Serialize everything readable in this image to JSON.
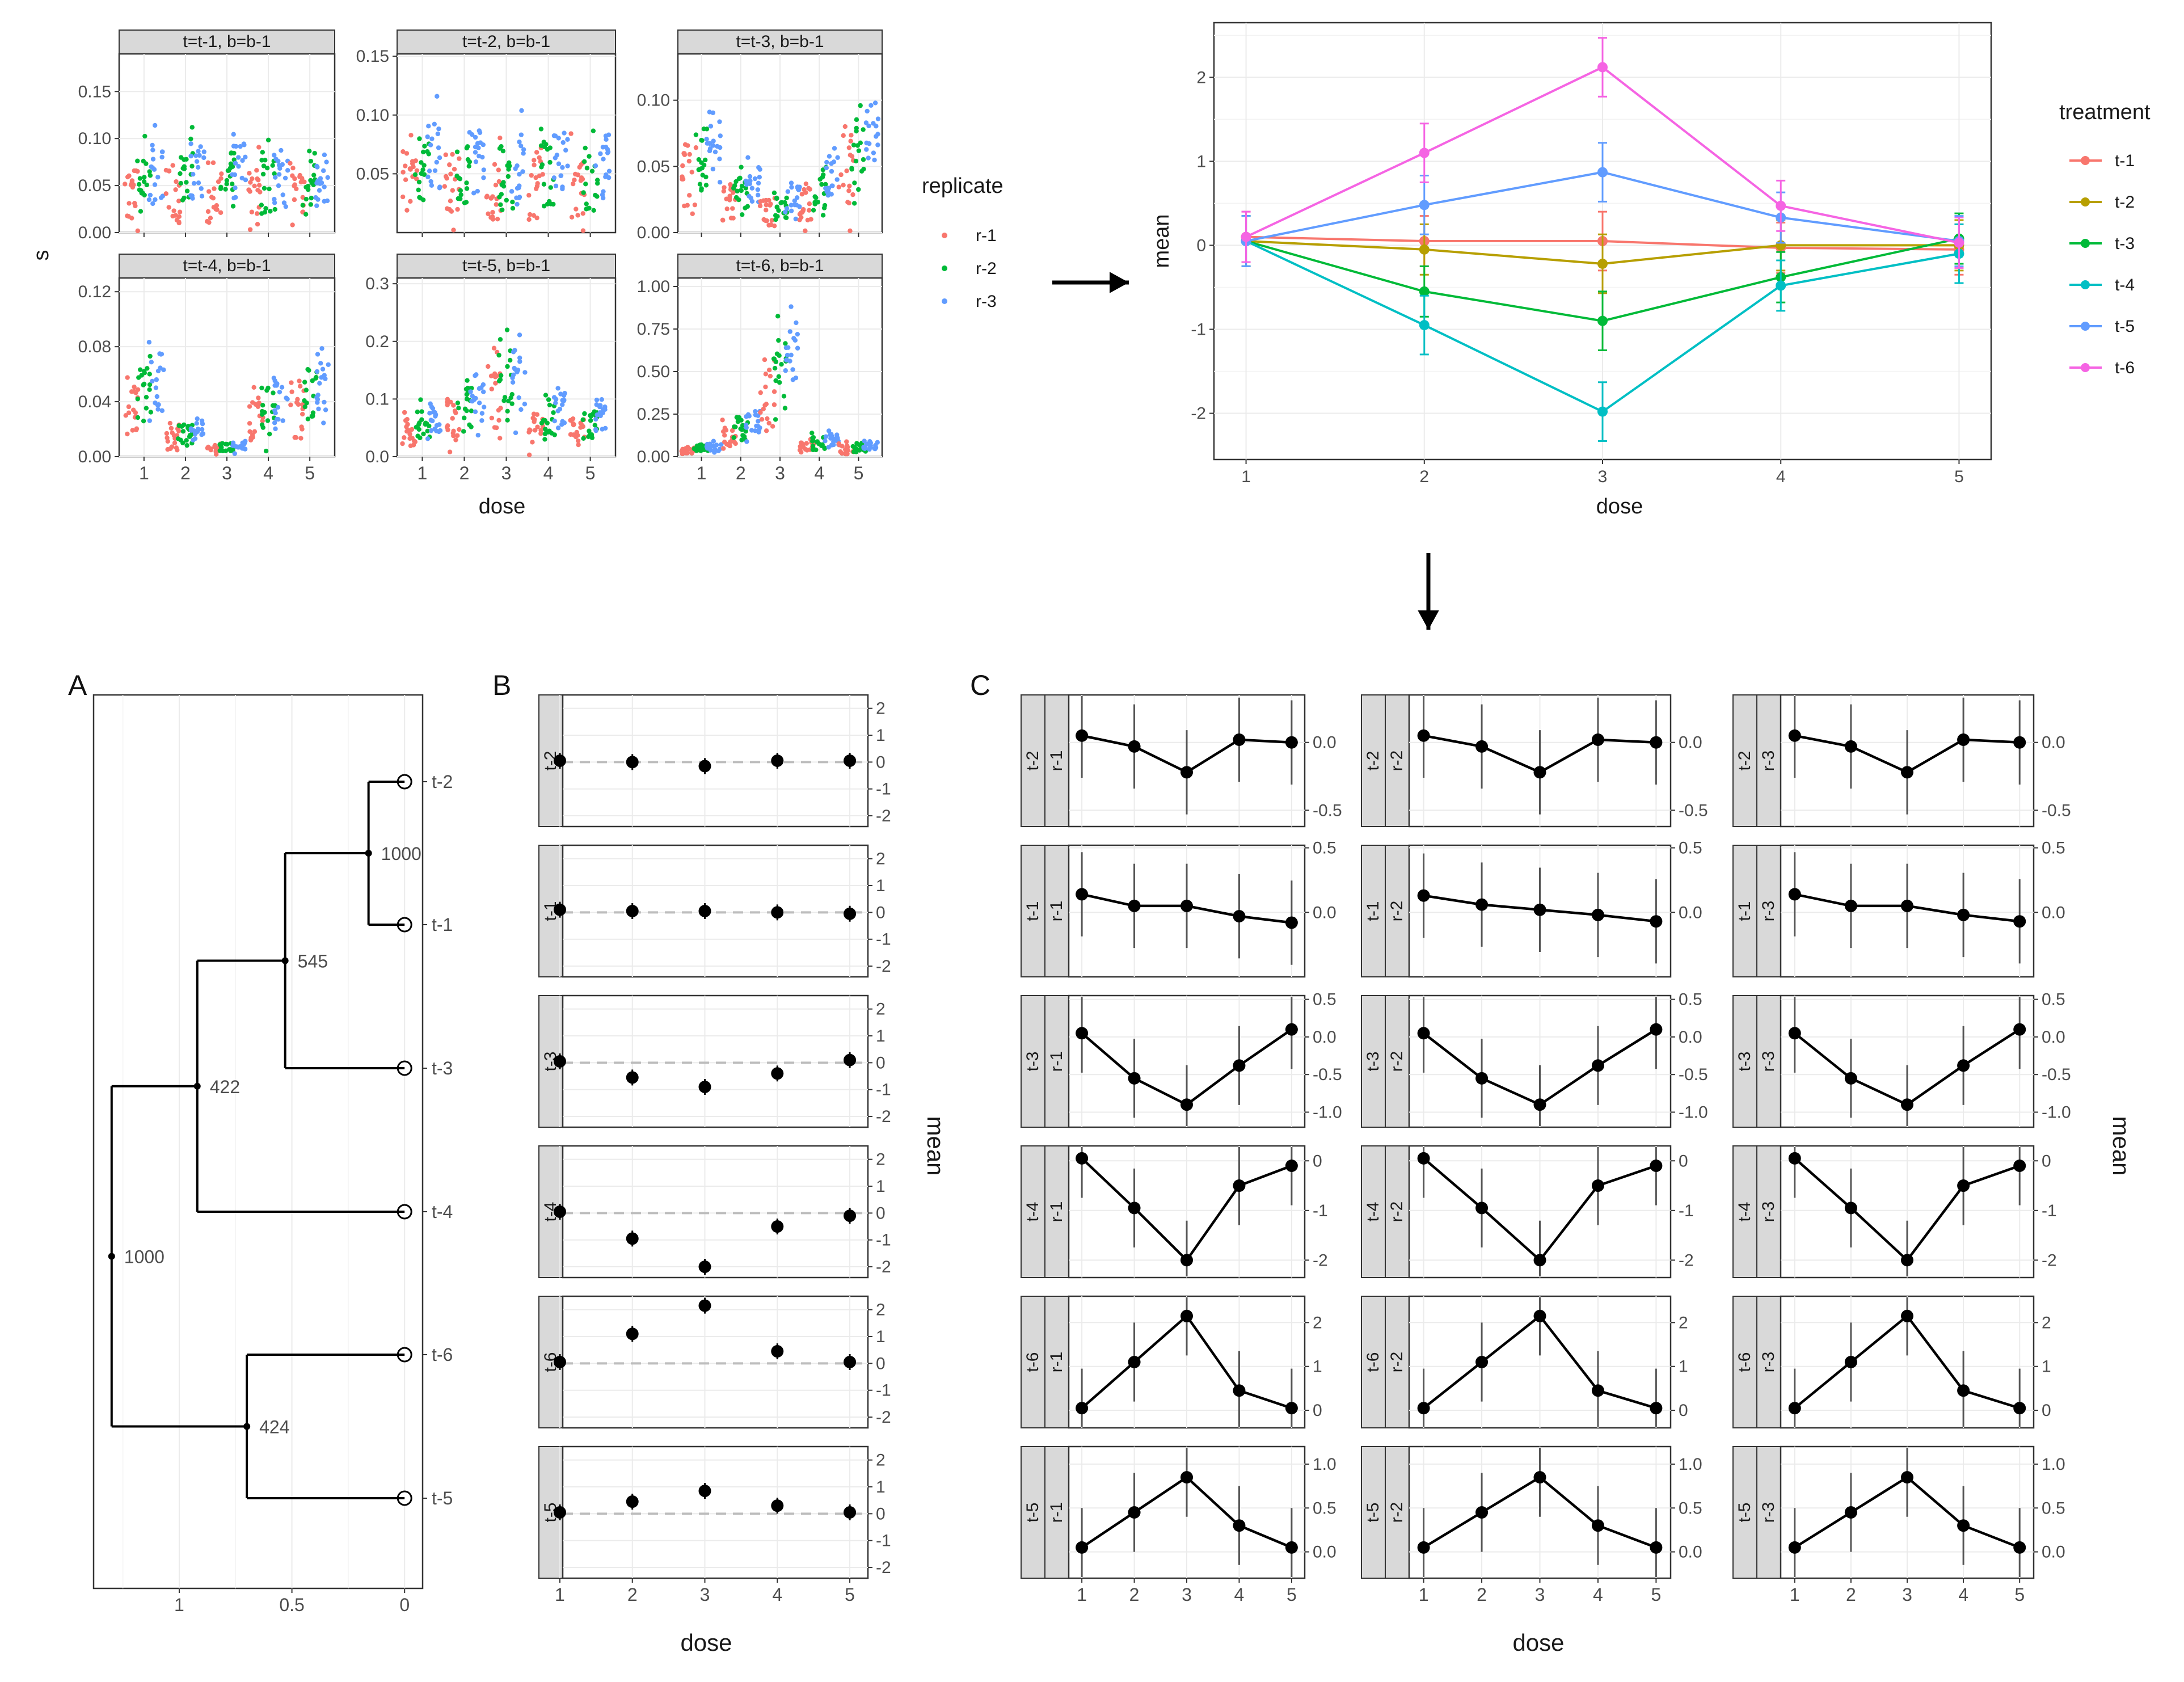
{
  "colors": {
    "r-1": "#F8766D",
    "r-2": "#00BA38",
    "r-3": "#619CFF",
    "t-1": "#F8766D",
    "t-2": "#B79F00",
    "t-3": "#00BA38",
    "t-4": "#00BFC4",
    "t-5": "#619CFF",
    "t-6": "#F564E3"
  },
  "panel_letters": {
    "a": "A",
    "b": "B",
    "c": "C"
  },
  "chart_data": [
    {
      "id": "raw_scatter",
      "type": "scatter",
      "xlabel": "dose",
      "ylabel": "s",
      "legend": {
        "title": "replicate",
        "entries": [
          "r-1",
          "r-2",
          "r-3"
        ],
        "placement": "right"
      },
      "x_ticks": [
        "1",
        "2",
        "3",
        "4",
        "5"
      ],
      "facets": [
        {
          "strip": "t=t-1, b=b-1",
          "ylim": [
            0,
            0.19
          ],
          "yticks": [
            "0.00",
            "0.05",
            "0.10",
            "0.15"
          ],
          "level": [
            0.045,
            0.048,
            0.05,
            0.043,
            0.043
          ],
          "spread": [
            0.045,
            0.045,
            0.045,
            0.045,
            0.045
          ],
          "max": 0.19
        },
        {
          "strip": "t=t-2, b=b-1",
          "ylim": [
            0,
            0.152
          ],
          "yticks": [
            "0.05",
            "0.10",
            "0.15"
          ],
          "level": [
            0.048,
            0.045,
            0.042,
            0.045,
            0.042
          ],
          "spread": [
            0.04,
            0.04,
            0.04,
            0.04,
            0.04
          ],
          "max": 0.145
        },
        {
          "strip": "t=t-3, b=b-1",
          "ylim": [
            0,
            0.135
          ],
          "yticks": [
            "0.00",
            "0.05",
            "0.10"
          ],
          "level": [
            0.05,
            0.027,
            0.018,
            0.03,
            0.055
          ],
          "spread": [
            0.035,
            0.02,
            0.015,
            0.025,
            0.04
          ],
          "max": 0.14
        },
        {
          "strip": "t=t-4, b=b-1",
          "ylim": [
            0,
            0.13
          ],
          "yticks": [
            "0.00",
            "0.04",
            "0.08",
            "0.12"
          ],
          "level": [
            0.04,
            0.015,
            0.006,
            0.03,
            0.04
          ],
          "spread": [
            0.03,
            0.012,
            0.005,
            0.025,
            0.03
          ],
          "max": 0.125
        },
        {
          "strip": "t=t-5, b=b-1",
          "ylim": [
            0,
            0.31
          ],
          "yticks": [
            "0.0",
            "0.1",
            "0.2",
            "0.3"
          ],
          "level": [
            0.05,
            0.075,
            0.11,
            0.065,
            0.05
          ],
          "spread": [
            0.035,
            0.06,
            0.09,
            0.05,
            0.035
          ],
          "max": 0.29
        },
        {
          "strip": "t=t-6, b=b-1",
          "ylim": [
            0,
            1.05
          ],
          "yticks": [
            "0.00",
            "0.25",
            "0.50",
            "0.75",
            "1.00"
          ],
          "level": [
            0.04,
            0.15,
            0.45,
            0.07,
            0.05
          ],
          "spread": [
            0.03,
            0.1,
            0.3,
            0.06,
            0.04
          ],
          "max": 1.0
        }
      ]
    },
    {
      "id": "mean_lines",
      "type": "line",
      "xlabel": "dose",
      "ylabel": "mean",
      "x": [
        1,
        2,
        3,
        4,
        5
      ],
      "xlim": [
        0.82,
        5.18
      ],
      "ylim": [
        -2.55,
        2.65
      ],
      "yticks": [
        -2,
        -1,
        0,
        1,
        2
      ],
      "legend": {
        "title": "treatment",
        "placement": "right"
      },
      "series": [
        {
          "name": "t-1",
          "values": [
            0.1,
            0.05,
            0.05,
            -0.03,
            -0.05
          ],
          "err": [
            0.3,
            0.3,
            0.35,
            0.3,
            0.3
          ]
        },
        {
          "name": "t-2",
          "values": [
            0.05,
            -0.05,
            -0.22,
            0.0,
            0.0
          ],
          "err": [
            0.3,
            0.3,
            0.35,
            0.3,
            0.3
          ]
        },
        {
          "name": "t-3",
          "values": [
            0.05,
            -0.55,
            -0.9,
            -0.38,
            0.08
          ],
          "err": [
            0.3,
            0.3,
            0.35,
            0.3,
            0.3
          ]
        },
        {
          "name": "t-4",
          "values": [
            0.05,
            -0.95,
            -1.98,
            -0.48,
            -0.1
          ],
          "err": [
            0.3,
            0.35,
            0.35,
            0.3,
            0.35
          ]
        },
        {
          "name": "t-5",
          "values": [
            0.05,
            0.48,
            0.87,
            0.33,
            0.05
          ],
          "err": [
            0.3,
            0.35,
            0.35,
            0.3,
            0.3
          ]
        },
        {
          "name": "t-6",
          "values": [
            0.1,
            1.1,
            2.12,
            0.47,
            0.03
          ],
          "err": [
            0.3,
            0.35,
            0.35,
            0.3,
            0.3
          ]
        }
      ]
    },
    {
      "id": "dendrogram",
      "type": "dendrogram",
      "panel": "A",
      "xticks": [
        "1",
        "0.5",
        "0"
      ],
      "xtick_values": [
        1,
        0.5,
        0
      ],
      "xlim": [
        1.38,
        -0.08
      ],
      "leaves": [
        "t-2",
        "t-1",
        "t-3",
        "t-4",
        "t-6",
        "t-5"
      ],
      "nodes": [
        {
          "label": "1000",
          "height": 0.16
        },
        {
          "label": "545",
          "height": 0.53
        },
        {
          "label": "422",
          "height": 0.92
        },
        {
          "label": "424",
          "height": 0.7
        },
        {
          "label": "1000",
          "height": 1.3
        }
      ]
    },
    {
      "id": "treatment_means",
      "type": "scatter",
      "panel": "B",
      "xlabel": "dose",
      "ylabel": "mean",
      "x": [
        1,
        2,
        3,
        4,
        5
      ],
      "ylim": [
        -2.4,
        2.5
      ],
      "yticks": [
        "2",
        "1",
        "0",
        "-1",
        "-2"
      ],
      "rows": [
        {
          "label": "t-2",
          "values": [
            0.05,
            0.0,
            -0.15,
            0.05,
            0.05
          ]
        },
        {
          "label": "t-1",
          "values": [
            0.1,
            0.05,
            0.05,
            0.0,
            -0.05
          ]
        },
        {
          "label": "t-3",
          "values": [
            0.05,
            -0.55,
            -0.9,
            -0.4,
            0.1
          ]
        },
        {
          "label": "t-4",
          "values": [
            0.05,
            -0.95,
            -2.0,
            -0.5,
            -0.1
          ]
        },
        {
          "label": "t-6",
          "values": [
            0.05,
            1.1,
            2.15,
            0.45,
            0.05
          ]
        },
        {
          "label": "t-5",
          "values": [
            0.05,
            0.45,
            0.85,
            0.3,
            0.05
          ]
        }
      ]
    },
    {
      "id": "replicate_means",
      "type": "line",
      "panel": "C",
      "xlabel": "dose",
      "ylabel": "mean",
      "x": [
        1,
        2,
        3,
        4,
        5
      ],
      "x_ticks": [
        "1",
        "2",
        "3",
        "4",
        "5"
      ],
      "columns": [
        "r-1",
        "r-2",
        "r-3"
      ],
      "rows": [
        {
          "treatment": "t-2",
          "ylim": [
            -0.62,
            0.35
          ],
          "yticks": [
            "0.0",
            "-0.5"
          ],
          "ytick_values": [
            0.0,
            -0.5
          ],
          "err": 0.32,
          "values": [
            [
              0.05,
              -0.03,
              -0.22,
              0.02,
              0.0
            ],
            [
              0.05,
              -0.03,
              -0.22,
              0.02,
              0.0
            ],
            [
              0.05,
              -0.03,
              -0.22,
              0.02,
              0.0
            ]
          ]
        },
        {
          "treatment": "t-1",
          "ylim": [
            -0.5,
            0.52
          ],
          "yticks": [
            "0.5",
            "0.0"
          ],
          "ytick_values": [
            0.5,
            0.0
          ],
          "err": 0.32,
          "values": [
            [
              0.14,
              0.05,
              0.05,
              -0.03,
              -0.08
            ],
            [
              0.13,
              0.06,
              0.02,
              -0.02,
              -0.07
            ],
            [
              0.14,
              0.05,
              0.05,
              -0.02,
              -0.07
            ]
          ]
        },
        {
          "treatment": "t-3",
          "ylim": [
            -1.2,
            0.55
          ],
          "yticks": [
            "0.5",
            "0.0",
            "-0.5",
            "-1.0"
          ],
          "ytick_values": [
            0.5,
            0.0,
            -0.5,
            -1.0
          ],
          "err": 0.3,
          "values": [
            [
              0.05,
              -0.55,
              -0.9,
              -0.38,
              0.1
            ],
            [
              0.05,
              -0.55,
              -0.9,
              -0.38,
              0.1
            ],
            [
              0.05,
              -0.55,
              -0.9,
              -0.38,
              0.1
            ]
          ]
        },
        {
          "treatment": "t-4",
          "ylim": [
            -2.35,
            0.3
          ],
          "yticks": [
            "0",
            "-1",
            "-2"
          ],
          "ytick_values": [
            0,
            -1,
            -2
          ],
          "err": 0.3,
          "values": [
            [
              0.05,
              -0.95,
              -2.0,
              -0.5,
              -0.1
            ],
            [
              0.05,
              -0.95,
              -2.0,
              -0.5,
              -0.1
            ],
            [
              0.05,
              -0.95,
              -2.0,
              -0.5,
              -0.1
            ]
          ]
        },
        {
          "treatment": "t-6",
          "ylim": [
            -0.4,
            2.6
          ],
          "yticks": [
            "2",
            "1",
            "0"
          ],
          "ytick_values": [
            2,
            1,
            0
          ],
          "err": 0.3,
          "values": [
            [
              0.05,
              1.1,
              2.15,
              0.45,
              0.05
            ],
            [
              0.05,
              1.1,
              2.15,
              0.45,
              0.05
            ],
            [
              0.05,
              1.1,
              2.15,
              0.45,
              0.05
            ]
          ]
        },
        {
          "treatment": "t-5",
          "ylim": [
            -0.3,
            1.2
          ],
          "yticks": [
            "1.0",
            "0.5",
            "0.0"
          ],
          "ytick_values": [
            1.0,
            0.5,
            0.0
          ],
          "err": 0.3,
          "values": [
            [
              0.05,
              0.45,
              0.85,
              0.3,
              0.05
            ],
            [
              0.05,
              0.45,
              0.85,
              0.3,
              0.05
            ],
            [
              0.05,
              0.45,
              0.85,
              0.3,
              0.05
            ]
          ]
        }
      ]
    }
  ]
}
